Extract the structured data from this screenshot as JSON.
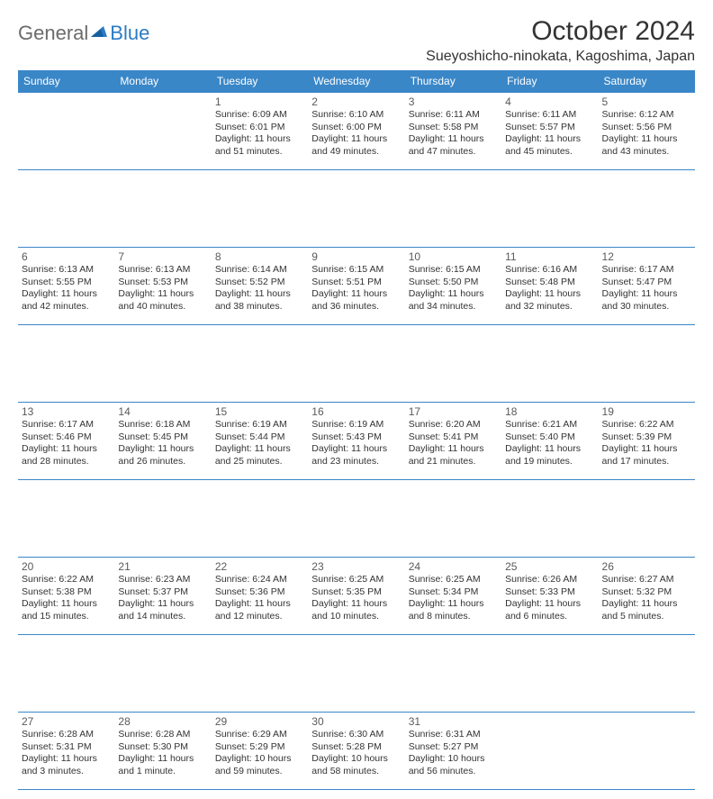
{
  "logo": {
    "general": "General",
    "blue": "Blue"
  },
  "title": "October 2024",
  "location": "Sueyoshicho-ninokata, Kagoshima, Japan",
  "colors": {
    "header_bg": "#3a87c8",
    "header_text": "#ffffff",
    "border": "#3a87c8",
    "logo_gray": "#6b6b6b",
    "logo_blue": "#2b7bc3"
  },
  "day_headers": [
    "Sunday",
    "Monday",
    "Tuesday",
    "Wednesday",
    "Thursday",
    "Friday",
    "Saturday"
  ],
  "weeks": [
    [
      null,
      null,
      {
        "n": "1",
        "sr": "Sunrise: 6:09 AM",
        "ss": "Sunset: 6:01 PM",
        "dl": "Daylight: 11 hours and 51 minutes."
      },
      {
        "n": "2",
        "sr": "Sunrise: 6:10 AM",
        "ss": "Sunset: 6:00 PM",
        "dl": "Daylight: 11 hours and 49 minutes."
      },
      {
        "n": "3",
        "sr": "Sunrise: 6:11 AM",
        "ss": "Sunset: 5:58 PM",
        "dl": "Daylight: 11 hours and 47 minutes."
      },
      {
        "n": "4",
        "sr": "Sunrise: 6:11 AM",
        "ss": "Sunset: 5:57 PM",
        "dl": "Daylight: 11 hours and 45 minutes."
      },
      {
        "n": "5",
        "sr": "Sunrise: 6:12 AM",
        "ss": "Sunset: 5:56 PM",
        "dl": "Daylight: 11 hours and 43 minutes."
      }
    ],
    [
      {
        "n": "6",
        "sr": "Sunrise: 6:13 AM",
        "ss": "Sunset: 5:55 PM",
        "dl": "Daylight: 11 hours and 42 minutes."
      },
      {
        "n": "7",
        "sr": "Sunrise: 6:13 AM",
        "ss": "Sunset: 5:53 PM",
        "dl": "Daylight: 11 hours and 40 minutes."
      },
      {
        "n": "8",
        "sr": "Sunrise: 6:14 AM",
        "ss": "Sunset: 5:52 PM",
        "dl": "Daylight: 11 hours and 38 minutes."
      },
      {
        "n": "9",
        "sr": "Sunrise: 6:15 AM",
        "ss": "Sunset: 5:51 PM",
        "dl": "Daylight: 11 hours and 36 minutes."
      },
      {
        "n": "10",
        "sr": "Sunrise: 6:15 AM",
        "ss": "Sunset: 5:50 PM",
        "dl": "Daylight: 11 hours and 34 minutes."
      },
      {
        "n": "11",
        "sr": "Sunrise: 6:16 AM",
        "ss": "Sunset: 5:48 PM",
        "dl": "Daylight: 11 hours and 32 minutes."
      },
      {
        "n": "12",
        "sr": "Sunrise: 6:17 AM",
        "ss": "Sunset: 5:47 PM",
        "dl": "Daylight: 11 hours and 30 minutes."
      }
    ],
    [
      {
        "n": "13",
        "sr": "Sunrise: 6:17 AM",
        "ss": "Sunset: 5:46 PM",
        "dl": "Daylight: 11 hours and 28 minutes."
      },
      {
        "n": "14",
        "sr": "Sunrise: 6:18 AM",
        "ss": "Sunset: 5:45 PM",
        "dl": "Daylight: 11 hours and 26 minutes."
      },
      {
        "n": "15",
        "sr": "Sunrise: 6:19 AM",
        "ss": "Sunset: 5:44 PM",
        "dl": "Daylight: 11 hours and 25 minutes."
      },
      {
        "n": "16",
        "sr": "Sunrise: 6:19 AM",
        "ss": "Sunset: 5:43 PM",
        "dl": "Daylight: 11 hours and 23 minutes."
      },
      {
        "n": "17",
        "sr": "Sunrise: 6:20 AM",
        "ss": "Sunset: 5:41 PM",
        "dl": "Daylight: 11 hours and 21 minutes."
      },
      {
        "n": "18",
        "sr": "Sunrise: 6:21 AM",
        "ss": "Sunset: 5:40 PM",
        "dl": "Daylight: 11 hours and 19 minutes."
      },
      {
        "n": "19",
        "sr": "Sunrise: 6:22 AM",
        "ss": "Sunset: 5:39 PM",
        "dl": "Daylight: 11 hours and 17 minutes."
      }
    ],
    [
      {
        "n": "20",
        "sr": "Sunrise: 6:22 AM",
        "ss": "Sunset: 5:38 PM",
        "dl": "Daylight: 11 hours and 15 minutes."
      },
      {
        "n": "21",
        "sr": "Sunrise: 6:23 AM",
        "ss": "Sunset: 5:37 PM",
        "dl": "Daylight: 11 hours and 14 minutes."
      },
      {
        "n": "22",
        "sr": "Sunrise: 6:24 AM",
        "ss": "Sunset: 5:36 PM",
        "dl": "Daylight: 11 hours and 12 minutes."
      },
      {
        "n": "23",
        "sr": "Sunrise: 6:25 AM",
        "ss": "Sunset: 5:35 PM",
        "dl": "Daylight: 11 hours and 10 minutes."
      },
      {
        "n": "24",
        "sr": "Sunrise: 6:25 AM",
        "ss": "Sunset: 5:34 PM",
        "dl": "Daylight: 11 hours and 8 minutes."
      },
      {
        "n": "25",
        "sr": "Sunrise: 6:26 AM",
        "ss": "Sunset: 5:33 PM",
        "dl": "Daylight: 11 hours and 6 minutes."
      },
      {
        "n": "26",
        "sr": "Sunrise: 6:27 AM",
        "ss": "Sunset: 5:32 PM",
        "dl": "Daylight: 11 hours and 5 minutes."
      }
    ],
    [
      {
        "n": "27",
        "sr": "Sunrise: 6:28 AM",
        "ss": "Sunset: 5:31 PM",
        "dl": "Daylight: 11 hours and 3 minutes."
      },
      {
        "n": "28",
        "sr": "Sunrise: 6:28 AM",
        "ss": "Sunset: 5:30 PM",
        "dl": "Daylight: 11 hours and 1 minute."
      },
      {
        "n": "29",
        "sr": "Sunrise: 6:29 AM",
        "ss": "Sunset: 5:29 PM",
        "dl": "Daylight: 10 hours and 59 minutes."
      },
      {
        "n": "30",
        "sr": "Sunrise: 6:30 AM",
        "ss": "Sunset: 5:28 PM",
        "dl": "Daylight: 10 hours and 58 minutes."
      },
      {
        "n": "31",
        "sr": "Sunrise: 6:31 AM",
        "ss": "Sunset: 5:27 PM",
        "dl": "Daylight: 10 hours and 56 minutes."
      },
      null,
      null
    ]
  ]
}
